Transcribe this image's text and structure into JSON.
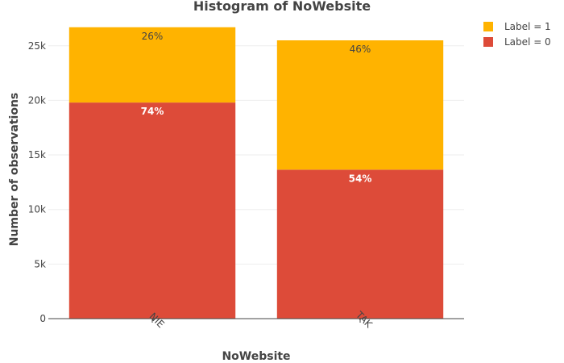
{
  "chart_data": {
    "type": "bar",
    "stacked": true,
    "title": "Histogram of NoWebsite",
    "xlabel": "NoWebsite",
    "ylabel": "Number of observations",
    "categories": [
      "NIE",
      "TAK"
    ],
    "series": [
      {
        "name": "Label = 0",
        "values": [
          19800,
          13650
        ],
        "labels": [
          "74%",
          "54%"
        ],
        "color": "#dd4b39"
      },
      {
        "name": "Label = 1",
        "values": [
          6900,
          11850
        ],
        "labels": [
          "26%",
          "46%"
        ],
        "color": "#ffb300"
      }
    ],
    "legend_order": [
      "Label = 1",
      "Label = 0"
    ],
    "ylim": [
      0,
      27200
    ],
    "yticks": [
      0,
      5000,
      10000,
      15000,
      20000,
      25000
    ],
    "ytick_labels": [
      "0",
      "5k",
      "10k",
      "15k",
      "20k",
      "25k"
    ],
    "grid": true,
    "legend_position": "top-right"
  }
}
